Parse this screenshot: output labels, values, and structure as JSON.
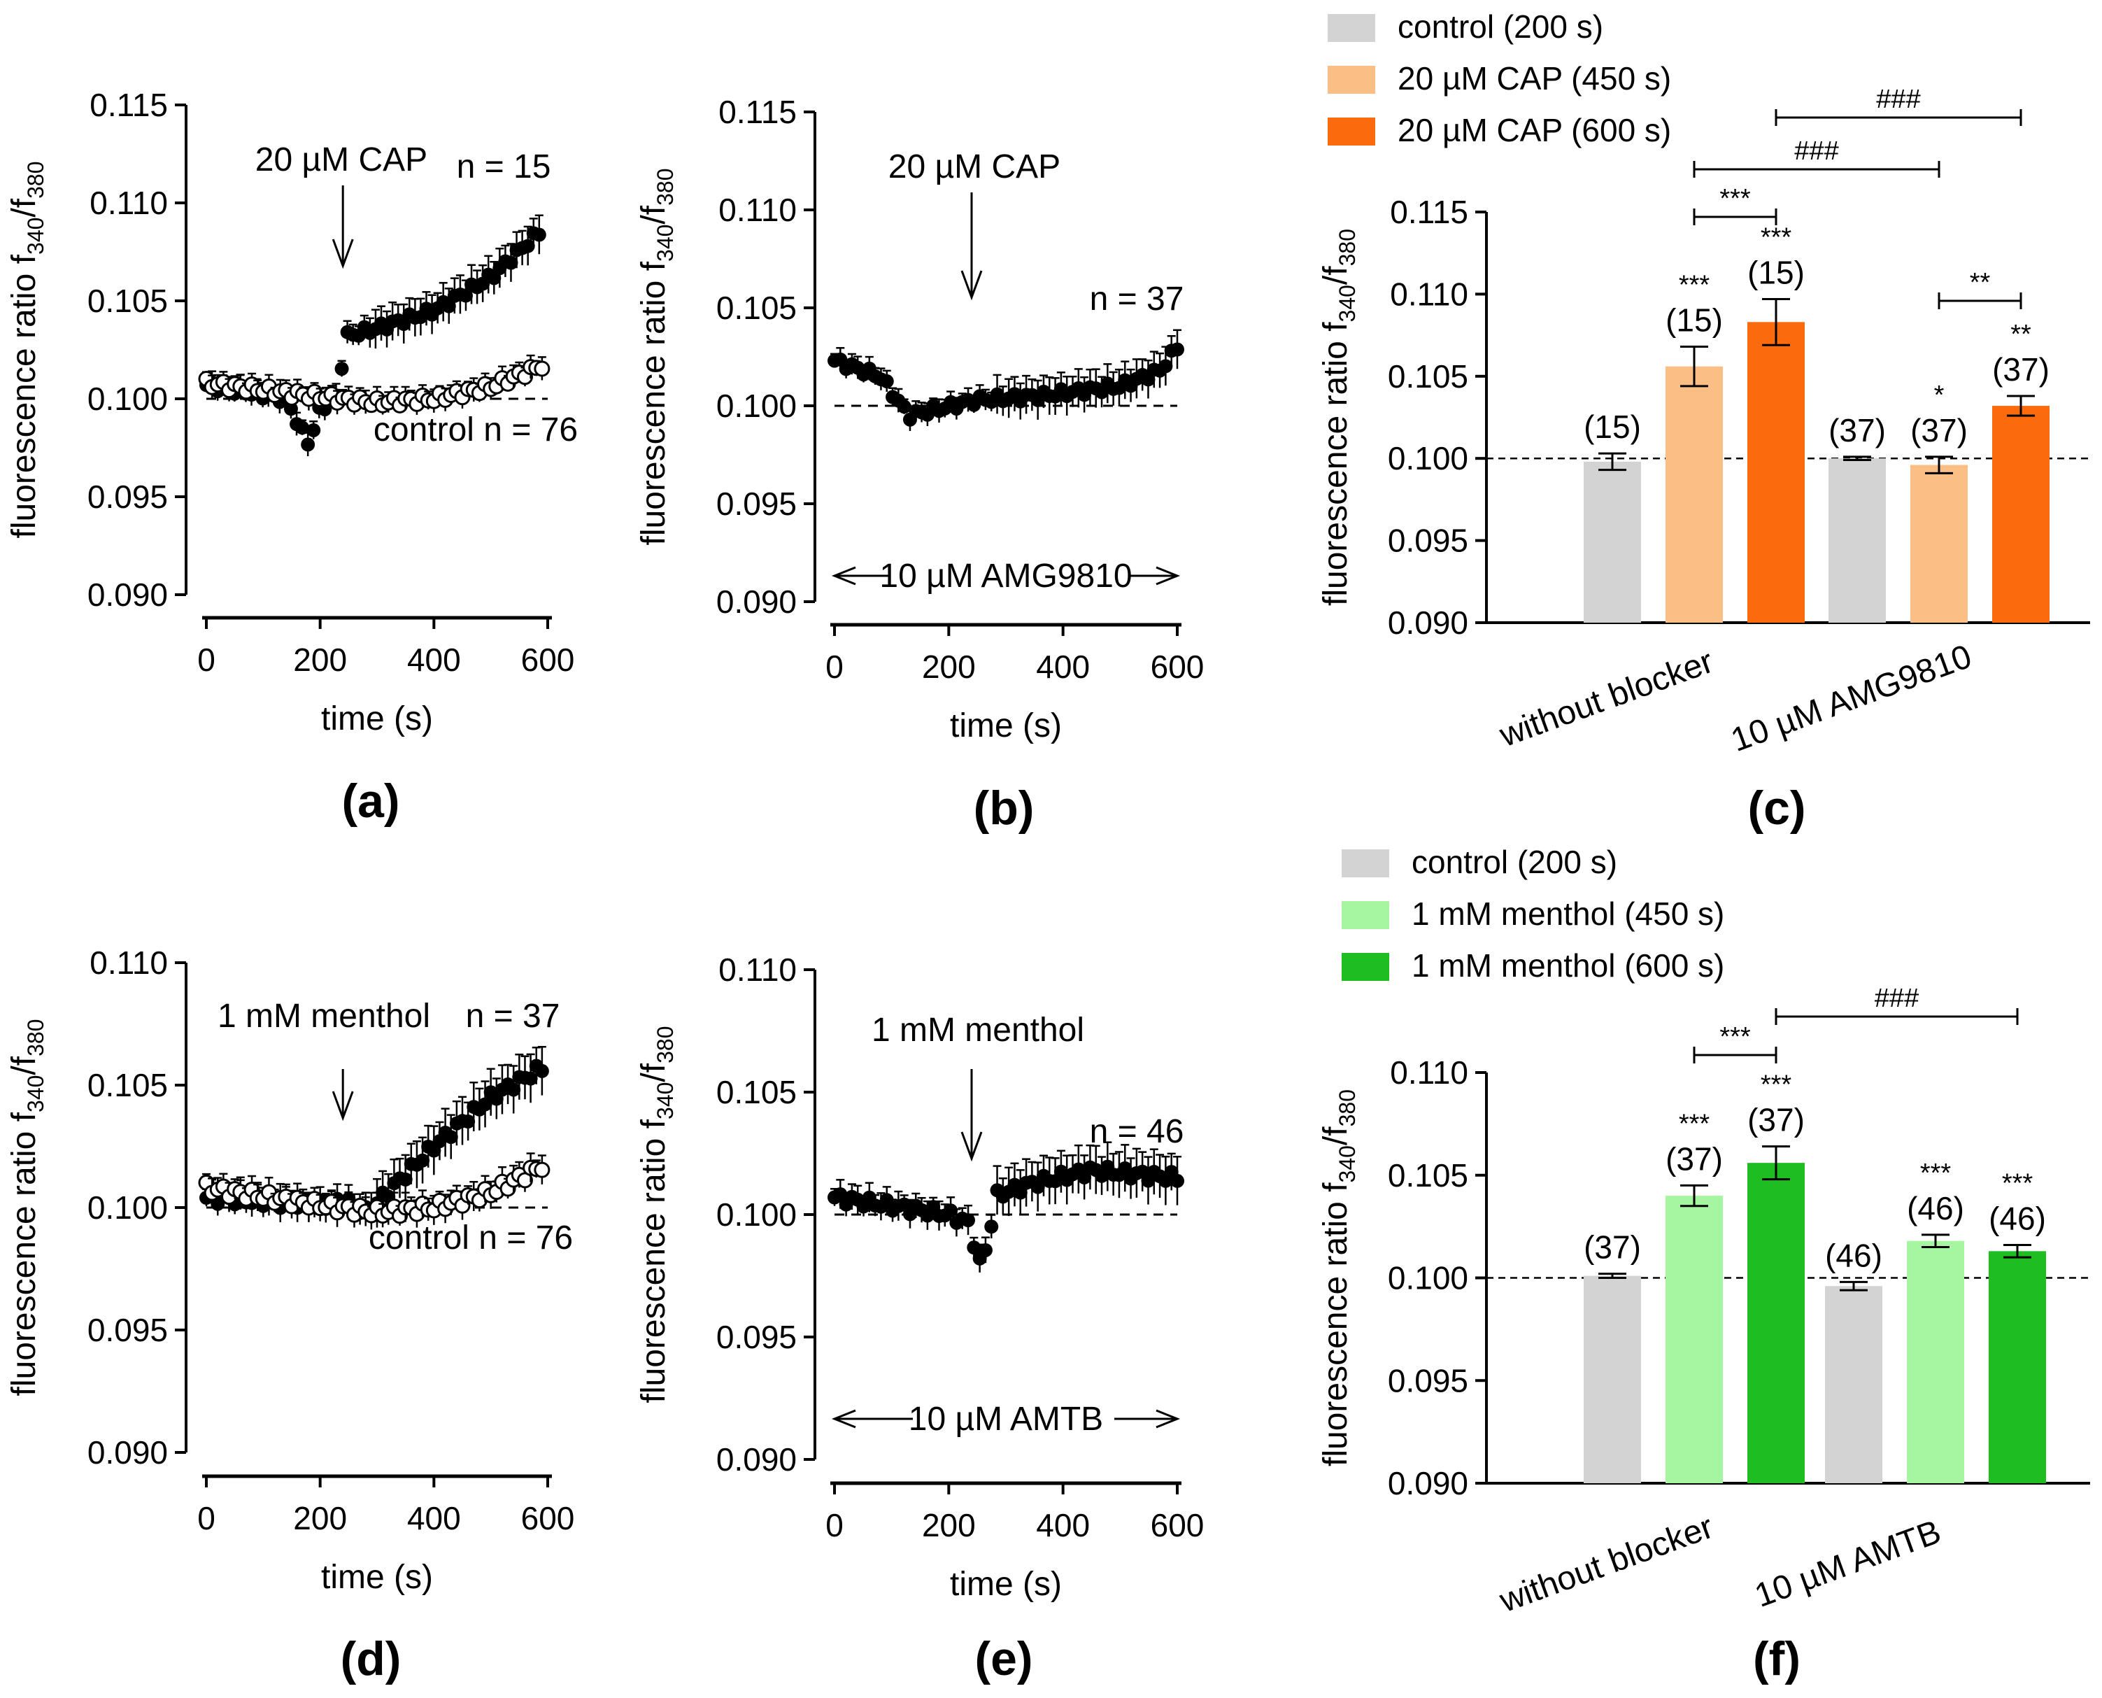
{
  "figure_labels": [
    "(a)",
    "(b)",
    "(c)",
    "(d)",
    "(e)",
    "(f)"
  ],
  "chart_data": [
    {
      "type": "scatter",
      "panel": "(a)",
      "xlabel": "time (s)",
      "ylabel": "fluorescence ratio f340/f380",
      "ylabel_main": "fluorescence ratio f",
      "ylabel_sub1": "340",
      "ylabel_sep": "/f",
      "ylabel_sub2": "380",
      "xlim": [
        0,
        600
      ],
      "ylim": [
        0.09,
        0.115
      ],
      "xticks": [
        "0",
        "200",
        "400",
        "600"
      ],
      "yticks": [
        "0.090",
        "0.095",
        "0.100",
        "0.105",
        "0.110",
        "0.115"
      ],
      "baseline": 0.1,
      "stimulus": {
        "label": "20 µM CAP",
        "time": 240
      },
      "series": [
        {
          "name": "CAP",
          "label": "n = 15",
          "marker": "filled",
          "t_start": 0,
          "t_end": 585,
          "points": 60,
          "shape": [
            [
              0,
              0.1007
            ],
            [
              140,
              0.1
            ],
            [
              165,
              0.0985
            ],
            [
              180,
              0.0977
            ],
            [
              200,
              0.0995
            ],
            [
              230,
              0.1001
            ],
            [
              245,
              0.1032
            ],
            [
              300,
              0.1036
            ],
            [
              400,
              0.1045
            ],
            [
              500,
              0.1062
            ],
            [
              585,
              0.1085
            ]
          ]
        },
        {
          "name": "control",
          "label": "control n = 76",
          "marker": "open",
          "t_start": 0,
          "t_end": 590,
          "points": 60,
          "shape": [
            [
              0,
              0.1008
            ],
            [
              200,
              0.1001
            ],
            [
              300,
              0.0998
            ],
            [
              400,
              0.1
            ],
            [
              500,
              0.1006
            ],
            [
              590,
              0.1017
            ]
          ]
        }
      ]
    },
    {
      "type": "scatter",
      "panel": "(b)",
      "xlabel": "time (s)",
      "ylabel": "fluorescence ratio f340/f380",
      "ylabel_main": "fluorescence ratio f",
      "ylabel_sub1": "340",
      "ylabel_sep": "/f",
      "ylabel_sub2": "380",
      "xlim": [
        0,
        600
      ],
      "ylim": [
        0.09,
        0.115
      ],
      "xticks": [
        "0",
        "200",
        "400",
        "600"
      ],
      "yticks": [
        "0.090",
        "0.095",
        "0.100",
        "0.105",
        "0.110",
        "0.115"
      ],
      "baseline": 0.1,
      "stimulus": {
        "label": "20 µM CAP",
        "time": 240
      },
      "blocker": "10 µM AMG9810",
      "series": [
        {
          "name": "CAP + AMG9810",
          "label": "n = 37",
          "marker": "filled",
          "t_start": 0,
          "t_end": 600,
          "points": 60,
          "shape": [
            [
              0,
              0.1023
            ],
            [
              80,
              0.1015
            ],
            [
              130,
              0.0995
            ],
            [
              250,
              0.1003
            ],
            [
              360,
              0.1005
            ],
            [
              500,
              0.101
            ],
            [
              570,
              0.1018
            ],
            [
              600,
              0.103
            ]
          ]
        }
      ]
    },
    {
      "type": "bar",
      "panel": "(c)",
      "ylabel": "fluorescence ratio f340/f380",
      "ylabel_main": "fluorescence ratio f",
      "ylabel_sub1": "340",
      "ylabel_sep": "/f",
      "ylabel_sub2": "380",
      "ylim": [
        0.09,
        0.115
      ],
      "yticks": [
        "0.090",
        "0.095",
        "0.100",
        "0.105",
        "0.110",
        "0.115"
      ],
      "baseline": 0.1,
      "categories": [
        "without blocker",
        "10 µM AMG9810"
      ],
      "series": [
        {
          "name": "control (200 s)",
          "color": "#d3d3d3",
          "values": [
            0.0998,
            0.1
          ],
          "errors": [
            0.0005,
            0.0001
          ],
          "n_labels": [
            "(15)",
            "(37)"
          ],
          "stars": [
            "",
            ""
          ]
        },
        {
          "name": "20 µM CAP (450 s)",
          "color": "#fbbf85",
          "values": [
            0.1056,
            0.0996
          ],
          "errors": [
            0.0012,
            0.0005
          ],
          "n_labels": [
            "(15)",
            "(37)"
          ],
          "stars": [
            "***",
            "*"
          ]
        },
        {
          "name": "20 µM CAP (600 s)",
          "color": "#fc6a0e",
          "values": [
            0.1083,
            0.1032
          ],
          "errors": [
            0.0014,
            0.0006
          ],
          "n_labels": [
            "(15)",
            "(37)"
          ],
          "stars": [
            "***",
            "**"
          ]
        }
      ],
      "comparisons": [
        {
          "label": "***",
          "from": [
            0,
            1
          ],
          "to": [
            0,
            2
          ]
        },
        {
          "label": "###",
          "from": [
            0,
            1
          ],
          "to": [
            1,
            1
          ]
        },
        {
          "label": "###",
          "from": [
            0,
            2
          ],
          "to": [
            1,
            2
          ]
        },
        {
          "label": "**",
          "from": [
            1,
            1
          ],
          "to": [
            1,
            2
          ]
        }
      ]
    },
    {
      "type": "scatter",
      "panel": "(d)",
      "xlabel": "time (s)",
      "ylabel": "fluorescence ratio f340/f380",
      "ylabel_main": "fluorescence ratio f",
      "ylabel_sub1": "340",
      "ylabel_sep": "/f",
      "ylabel_sub2": "380",
      "xlim": [
        0,
        600
      ],
      "ylim": [
        0.09,
        0.11
      ],
      "xticks": [
        "0",
        "200",
        "400",
        "600"
      ],
      "yticks": [
        "0.090",
        "0.095",
        "0.100",
        "0.105",
        "0.110"
      ],
      "baseline": 0.1,
      "stimulus": {
        "label": "1 mM menthol",
        "time": 240
      },
      "series": [
        {
          "name": "menthol",
          "label": "n = 37",
          "marker": "filled",
          "t_start": 0,
          "t_end": 590,
          "points": 60,
          "shape": [
            [
              0,
              0.1004
            ],
            [
              200,
              0.1001
            ],
            [
              240,
              0.1003
            ],
            [
              280,
              0.0998
            ],
            [
              300,
              0.1002
            ],
            [
              400,
              0.1025
            ],
            [
              500,
              0.1045
            ],
            [
              590,
              0.1057
            ]
          ]
        },
        {
          "name": "control",
          "label": "control n = 76",
          "marker": "open",
          "t_start": 0,
          "t_end": 590,
          "points": 60,
          "shape": [
            [
              0,
              0.1008
            ],
            [
              200,
              0.1001
            ],
            [
              300,
              0.0998
            ],
            [
              400,
              0.1
            ],
            [
              500,
              0.1006
            ],
            [
              590,
              0.1017
            ]
          ]
        }
      ]
    },
    {
      "type": "scatter",
      "panel": "(e)",
      "xlabel": "time (s)",
      "ylabel": "fluorescence ratio f340/f380",
      "ylabel_main": "fluorescence ratio f",
      "ylabel_sub1": "340",
      "ylabel_sep": "/f",
      "ylabel_sub2": "380",
      "xlim": [
        0,
        600
      ],
      "ylim": [
        0.09,
        0.11
      ],
      "xticks": [
        "0",
        "200",
        "400",
        "600"
      ],
      "yticks": [
        "0.090",
        "0.095",
        "0.100",
        "0.105",
        "0.110"
      ],
      "baseline": 0.1,
      "stimulus": {
        "label": "1 mM menthol",
        "time": 240
      },
      "blocker": "10 µM AMTB",
      "series": [
        {
          "name": "menthol + AMTB",
          "label": "n = 46",
          "marker": "filled",
          "t_start": 0,
          "t_end": 600,
          "points": 60,
          "shape": [
            [
              0,
              0.1007
            ],
            [
              200,
              0.1
            ],
            [
              240,
              0.0996
            ],
            [
              250,
              0.0978
            ],
            [
              265,
              0.0986
            ],
            [
              285,
              0.1008
            ],
            [
              350,
              0.1013
            ],
            [
              450,
              0.1018
            ],
            [
              600,
              0.1015
            ]
          ]
        }
      ]
    },
    {
      "type": "bar",
      "panel": "(f)",
      "ylabel": "fluorescence ratio f340/f380",
      "ylabel_main": "fluorescence ratio f",
      "ylabel_sub1": "340",
      "ylabel_sep": "/f",
      "ylabel_sub2": "380",
      "ylim": [
        0.09,
        0.11
      ],
      "yticks": [
        "0.090",
        "0.095",
        "0.100",
        "0.105",
        "0.110"
      ],
      "baseline": 0.1,
      "categories": [
        "without blocker",
        "10 µM AMTB"
      ],
      "series": [
        {
          "name": "control (200 s)",
          "color": "#d3d3d3",
          "values": [
            0.1001,
            0.0996
          ],
          "errors": [
            0.0001,
            0.0002
          ],
          "n_labels": [
            "(37)",
            "(46)"
          ],
          "stars": [
            "",
            ""
          ]
        },
        {
          "name": "1 mM menthol (450 s)",
          "color": "#a6f5a0",
          "values": [
            0.104,
            0.1018
          ],
          "errors": [
            0.0005,
            0.0003
          ],
          "n_labels": [
            "(37)",
            "(46)"
          ],
          "stars": [
            "***",
            "***"
          ]
        },
        {
          "name": "1 mM menthol (600 s)",
          "color": "#1ebd22",
          "values": [
            0.1056,
            0.1013
          ],
          "errors": [
            0.0008,
            0.0003
          ],
          "n_labels": [
            "(37)",
            "(46)"
          ],
          "stars": [
            "***",
            "***"
          ]
        }
      ],
      "comparisons": [
        {
          "label": "***",
          "from": [
            0,
            1
          ],
          "to": [
            0,
            2
          ]
        },
        {
          "label": "###",
          "from": [
            0,
            2
          ],
          "to": [
            1,
            2
          ]
        }
      ]
    }
  ]
}
